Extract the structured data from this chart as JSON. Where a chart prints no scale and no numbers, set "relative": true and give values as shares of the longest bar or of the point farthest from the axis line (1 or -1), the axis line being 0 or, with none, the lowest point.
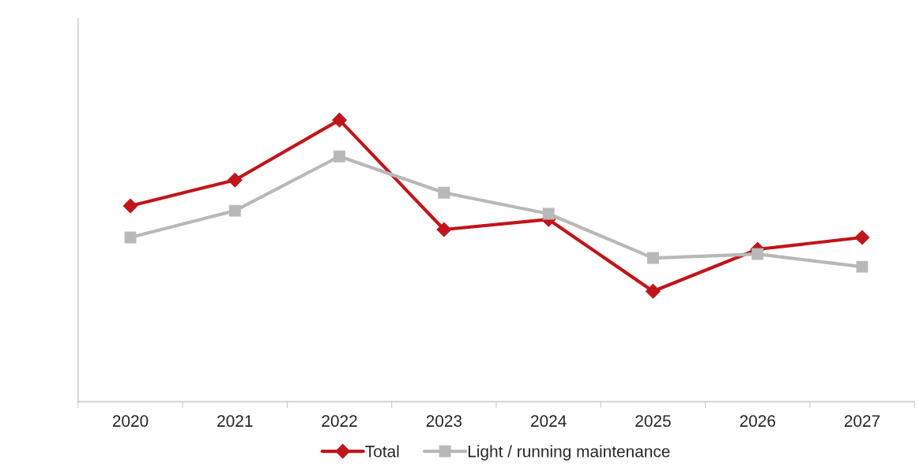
{
  "chart_data": {
    "type": "line",
    "relative": true,
    "categories": [
      "2020",
      "2021",
      "2022",
      "2023",
      "2024",
      "2025",
      "2026",
      "2027"
    ],
    "series": [
      {
        "name": "Total",
        "color": "#c0151b",
        "marker": "diamond",
        "values": [
          0.695,
          0.787,
          1,
          0.611,
          0.647,
          0.392,
          0.541,
          0.583
        ]
      },
      {
        "name": "Light / running maintenance",
        "color": "#b8b8b8",
        "marker": "square",
        "values": [
          0.583,
          0.678,
          0.871,
          0.742,
          0.667,
          0.51,
          0.524,
          0.479
        ]
      }
    ],
    "legend": "bottom",
    "grid": false,
    "line_style": "solid"
  }
}
